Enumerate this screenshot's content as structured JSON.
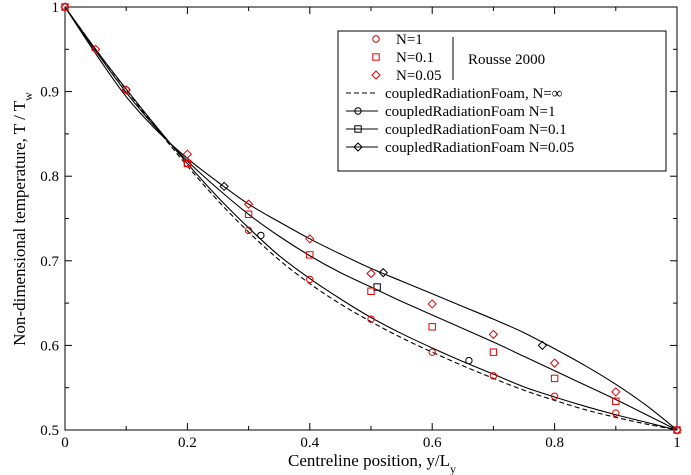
{
  "chart_data": {
    "type": "scatter",
    "xlabel": "Centreline position, y/L",
    "xlabel_sub": "y",
    "ylabel": "Non-dimensional temperature, T / T",
    "ylabel_sub": "w",
    "xlim": [
      0,
      1
    ],
    "ylim": [
      0.5,
      1
    ],
    "xticks": [
      0,
      0.2,
      0.4,
      0.6,
      0.8,
      1
    ],
    "yticks": [
      0.5,
      0.6,
      0.7,
      0.8,
      0.9,
      1
    ],
    "xtick_labels": [
      "0",
      "0.2",
      "0.4",
      "0.6",
      "0.8",
      "1"
    ],
    "ytick_labels": [
      "0.5",
      "0.6",
      "0.7",
      "0.8",
      "0.9",
      "1"
    ],
    "grid": false,
    "legend_position": "top-right",
    "legend_group_label": "Rousse 2000",
    "series": [
      {
        "name": "N=1",
        "kind": "marker",
        "marker": "circle",
        "color": "#e00000",
        "x": [
          0,
          0.1,
          0.2,
          0.3,
          0.4,
          0.5,
          0.6,
          0.7,
          0.8,
          0.9,
          1
        ],
        "y": [
          1,
          0.902,
          0.815,
          0.736,
          0.678,
          0.631,
          0.592,
          0.564,
          0.54,
          0.52,
          0.5
        ]
      },
      {
        "name": "N=0.1",
        "kind": "marker",
        "marker": "square",
        "color": "#e00000",
        "x": [
          0,
          0.2,
          0.3,
          0.4,
          0.5,
          0.6,
          0.7,
          0.8,
          0.9,
          1
        ],
        "y": [
          1,
          0.815,
          0.755,
          0.707,
          0.664,
          0.622,
          0.592,
          0.561,
          0.534,
          0.5
        ]
      },
      {
        "name": "N=0.05",
        "kind": "marker",
        "marker": "diamond",
        "color": "#e00000",
        "x": [
          0,
          0.05,
          0.1,
          0.2,
          0.3,
          0.4,
          0.5,
          0.6,
          0.7,
          0.8,
          0.9,
          1
        ],
        "y": [
          1,
          0.95,
          0.902,
          0.826,
          0.767,
          0.726,
          0.685,
          0.649,
          0.613,
          0.579,
          0.545,
          0.5
        ]
      },
      {
        "name": "coupledRadiationFoam, N=∞",
        "kind": "line",
        "dash": "5,3",
        "marker": "none",
        "color": "#000000",
        "x": [
          0,
          0.05,
          0.1,
          0.15,
          0.2,
          0.25,
          0.3,
          0.35,
          0.4,
          0.45,
          0.5,
          0.55,
          0.6,
          0.65,
          0.7,
          0.75,
          0.8,
          0.85,
          0.9,
          0.95,
          1
        ],
        "y": [
          1,
          0.95,
          0.902,
          0.856,
          0.812,
          0.771,
          0.734,
          0.701,
          0.673,
          0.649,
          0.628,
          0.609,
          0.592,
          0.576,
          0.561,
          0.547,
          0.535,
          0.524,
          0.515,
          0.507,
          0.5
        ]
      },
      {
        "name": "coupledRadiationFoam N=1",
        "kind": "line",
        "dash": "",
        "marker": "circle",
        "color": "#000000",
        "x": [
          0,
          0.05,
          0.1,
          0.15,
          0.2,
          0.25,
          0.3,
          0.35,
          0.4,
          0.45,
          0.5,
          0.55,
          0.6,
          0.65,
          0.7,
          0.75,
          0.8,
          0.85,
          0.9,
          0.95,
          1
        ],
        "y": [
          1,
          0.95,
          0.903,
          0.858,
          0.815,
          0.775,
          0.739,
          0.706,
          0.679,
          0.655,
          0.633,
          0.614,
          0.597,
          0.581,
          0.566,
          0.551,
          0.539,
          0.528,
          0.518,
          0.509,
          0.5
        ],
        "marker_x": [
          0.32,
          0.66
        ],
        "marker_y": [
          0.73,
          0.582
        ]
      },
      {
        "name": "coupledRadiationFoam N=0.1",
        "kind": "line",
        "dash": "",
        "marker": "square",
        "color": "#000000",
        "x": [
          0,
          0.05,
          0.1,
          0.15,
          0.2,
          0.25,
          0.3,
          0.35,
          0.4,
          0.45,
          0.5,
          0.55,
          0.6,
          0.65,
          0.7,
          0.75,
          0.8,
          0.85,
          0.9,
          0.95,
          1
        ],
        "y": [
          1,
          0.948,
          0.899,
          0.856,
          0.818,
          0.785,
          0.755,
          0.729,
          0.706,
          0.686,
          0.669,
          0.652,
          0.636,
          0.62,
          0.604,
          0.587,
          0.57,
          0.553,
          0.536,
          0.518,
          0.5
        ],
        "marker_x": [
          0.51
        ],
        "marker_y": [
          0.669
        ]
      },
      {
        "name": "coupledRadiationFoam N=0.05",
        "kind": "line",
        "dash": "",
        "marker": "diamond",
        "color": "#000000",
        "x": [
          0,
          0.05,
          0.1,
          0.15,
          0.2,
          0.25,
          0.3,
          0.35,
          0.4,
          0.45,
          0.5,
          0.55,
          0.6,
          0.65,
          0.7,
          0.75,
          0.8,
          0.85,
          0.9,
          0.95,
          1
        ],
        "y": [
          1,
          0.945,
          0.894,
          0.854,
          0.821,
          0.793,
          0.767,
          0.746,
          0.726,
          0.708,
          0.691,
          0.676,
          0.661,
          0.646,
          0.631,
          0.615,
          0.596,
          0.576,
          0.554,
          0.529,
          0.5
        ],
        "marker_x": [
          0.26,
          0.52,
          0.78
        ],
        "marker_y": [
          0.788,
          0.686,
          0.6
        ]
      }
    ]
  }
}
